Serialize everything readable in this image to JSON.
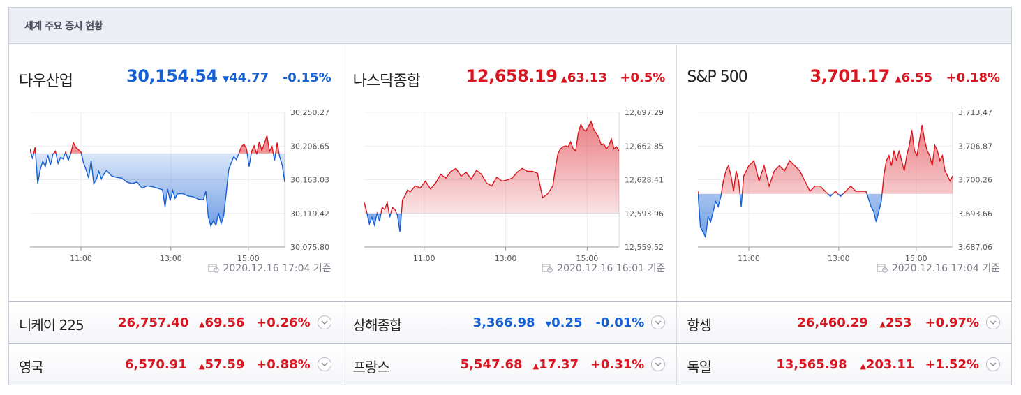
{
  "header": {
    "title": "세계 주요 증시 현황"
  },
  "colors": {
    "up": "#d9161f",
    "down": "#1560d4"
  },
  "chart_data": [
    {
      "type": "line",
      "name": "다우산업",
      "value": "30,154.54",
      "change": "44.77",
      "change_dir": "down",
      "percent": "-0.15%",
      "timestamp": "2020.12.16 17:04 기준",
      "ylim": [
        30075.8,
        30250.27
      ],
      "yticks": [
        "30,250.27",
        "30,206.65",
        "30,163.03",
        "30,119.42",
        "30,075.80"
      ],
      "xticks": [
        "11:00",
        "13:00",
        "15:00"
      ],
      "xtick_pos": [
        0.2,
        0.553,
        0.857
      ],
      "baseline": 30197.0,
      "x": [
        0.0,
        0.01,
        0.02,
        0.03,
        0.04,
        0.05,
        0.06,
        0.07,
        0.08,
        0.09,
        0.1,
        0.11,
        0.12,
        0.13,
        0.14,
        0.15,
        0.16,
        0.17,
        0.18,
        0.19,
        0.2,
        0.21,
        0.22,
        0.23,
        0.24,
        0.25,
        0.26,
        0.27,
        0.28,
        0.29,
        0.3,
        0.32,
        0.34,
        0.36,
        0.38,
        0.4,
        0.42,
        0.44,
        0.46,
        0.48,
        0.5,
        0.52,
        0.53,
        0.54,
        0.55,
        0.56,
        0.57,
        0.58,
        0.6,
        0.62,
        0.64,
        0.66,
        0.68,
        0.69,
        0.7,
        0.71,
        0.72,
        0.73,
        0.74,
        0.75,
        0.76,
        0.77,
        0.78,
        0.79,
        0.8,
        0.81,
        0.82,
        0.83,
        0.84,
        0.85,
        0.86,
        0.87,
        0.88,
        0.89,
        0.9,
        0.91,
        0.92,
        0.93,
        0.94,
        0.95,
        0.96,
        0.97,
        0.98,
        0.99,
        1.0
      ],
      "y": [
        30203,
        30190,
        30205,
        30158,
        30176,
        30187,
        30180,
        30195,
        30182,
        30196,
        30200,
        30184,
        30192,
        30190,
        30199,
        30188,
        30197,
        30211,
        30205,
        30202,
        30199,
        30185,
        30176,
        30165,
        30188,
        30158,
        30163,
        30174,
        30164,
        30170,
        30175,
        30168,
        30166,
        30165,
        30160,
        30158,
        30160,
        30152,
        30155,
        30154,
        30152,
        30150,
        30128,
        30151,
        30136,
        30149,
        30139,
        30145,
        30145,
        30142,
        30141,
        30138,
        30137,
        30148,
        30115,
        30103,
        30110,
        30104,
        30120,
        30106,
        30116,
        30145,
        30176,
        30185,
        30193,
        30189,
        30197,
        30206,
        30209,
        30203,
        30180,
        30200,
        30207,
        30196,
        30212,
        30201,
        30210,
        30220,
        30200,
        30206,
        30188,
        30211,
        30193,
        30182,
        30160
      ]
    },
    {
      "type": "line",
      "name": "나스닥종합",
      "value": "12,658.19",
      "change": "63.13",
      "change_dir": "up",
      "percent": "+0.5%",
      "timestamp": "2020.12.16 16:01 기준",
      "ylim": [
        12559.52,
        12697.29
      ],
      "yticks": [
        "12,697.29",
        "12,662.85",
        "12,628.41",
        "12,593.96",
        "12,559.52"
      ],
      "xticks": [
        "11:00",
        "13:00",
        "15:00"
      ],
      "xtick_pos": [
        0.235,
        0.555,
        0.875
      ],
      "baseline": 12594.0,
      "x": [
        0.0,
        0.01,
        0.02,
        0.03,
        0.04,
        0.05,
        0.06,
        0.07,
        0.08,
        0.09,
        0.1,
        0.11,
        0.12,
        0.13,
        0.14,
        0.15,
        0.16,
        0.17,
        0.18,
        0.2,
        0.22,
        0.24,
        0.26,
        0.28,
        0.3,
        0.32,
        0.34,
        0.36,
        0.38,
        0.4,
        0.42,
        0.44,
        0.46,
        0.48,
        0.5,
        0.52,
        0.54,
        0.56,
        0.58,
        0.6,
        0.62,
        0.64,
        0.66,
        0.68,
        0.7,
        0.72,
        0.74,
        0.75,
        0.76,
        0.77,
        0.78,
        0.79,
        0.8,
        0.81,
        0.82,
        0.83,
        0.84,
        0.85,
        0.86,
        0.87,
        0.88,
        0.89,
        0.9,
        0.91,
        0.92,
        0.93,
        0.94,
        0.95,
        0.96,
        0.97,
        0.98,
        0.99,
        1.0
      ],
      "y": [
        12605,
        12595,
        12583,
        12590,
        12582,
        12594,
        12586,
        12600,
        12598,
        12605,
        12590,
        12600,
        12598,
        12592,
        12575,
        12608,
        12612,
        12618,
        12616,
        12622,
        12620,
        12627,
        12619,
        12625,
        12634,
        12630,
        12637,
        12640,
        12632,
        12636,
        12629,
        12638,
        12634,
        12625,
        12622,
        12631,
        12627,
        12628,
        12630,
        12636,
        12640,
        12637,
        12637,
        12635,
        12610,
        12614,
        12622,
        12640,
        12655,
        12660,
        12662,
        12663,
        12662,
        12667,
        12660,
        12658,
        12676,
        12685,
        12680,
        12678,
        12683,
        12688,
        12680,
        12676,
        12672,
        12664,
        12665,
        12660,
        12663,
        12670,
        12660,
        12662,
        12658
      ]
    },
    {
      "type": "line",
      "name": "S&P 500",
      "value": "3,701.17",
      "change": "6.55",
      "change_dir": "up",
      "percent": "+0.18%",
      "timestamp": "2020.12.16 17:04 기준",
      "ylim": [
        3687.06,
        3713.47
      ],
      "yticks": [
        "3,713.47",
        "3,706.87",
        "3,700.26",
        "3,693.66",
        "3,687.06"
      ],
      "xticks": [
        "11:00",
        "13:00",
        "15:00"
      ],
      "xtick_pos": [
        0.2,
        0.553,
        0.857
      ],
      "baseline": 3697.5,
      "x": [
        0.0,
        0.01,
        0.02,
        0.03,
        0.04,
        0.05,
        0.06,
        0.07,
        0.08,
        0.09,
        0.1,
        0.11,
        0.12,
        0.13,
        0.14,
        0.15,
        0.16,
        0.17,
        0.18,
        0.2,
        0.22,
        0.24,
        0.26,
        0.28,
        0.3,
        0.32,
        0.34,
        0.36,
        0.38,
        0.4,
        0.42,
        0.44,
        0.46,
        0.48,
        0.5,
        0.52,
        0.54,
        0.56,
        0.58,
        0.6,
        0.62,
        0.64,
        0.66,
        0.68,
        0.69,
        0.7,
        0.71,
        0.72,
        0.73,
        0.74,
        0.75,
        0.76,
        0.77,
        0.78,
        0.79,
        0.8,
        0.81,
        0.82,
        0.83,
        0.84,
        0.85,
        0.86,
        0.87,
        0.88,
        0.89,
        0.9,
        0.91,
        0.92,
        0.93,
        0.94,
        0.95,
        0.96,
        0.97,
        0.98,
        0.99,
        1.0
      ],
      "y": [
        3698,
        3691,
        3690,
        3689,
        3693,
        3692,
        3694,
        3696,
        3695,
        3697,
        3700,
        3702,
        3703,
        3701,
        3698,
        3702,
        3700,
        3695,
        3701,
        3703,
        3704,
        3700,
        3703,
        3699,
        3702,
        3703,
        3702,
        3704,
        3703,
        3702,
        3700,
        3698,
        3699,
        3699,
        3698,
        3697,
        3698,
        3697,
        3698,
        3699,
        3698,
        3698,
        3698,
        3695,
        3694,
        3692,
        3694,
        3696,
        3701,
        3704,
        3705,
        3703,
        3706,
        3704,
        3706,
        3704,
        3702,
        3705,
        3707,
        3710,
        3706,
        3705,
        3708,
        3711,
        3708,
        3706,
        3705,
        3703,
        3707,
        3706,
        3704,
        3705,
        3702,
        3701,
        3700,
        3701
      ]
    }
  ],
  "rows": [
    [
      {
        "name": "니케이 225",
        "value": "26,757.40",
        "change": "69.56",
        "dir": "up",
        "percent": "+0.26%"
      },
      {
        "name": "상해종합",
        "value": "3,366.98",
        "change": "0.25",
        "dir": "down",
        "percent": "-0.01%"
      },
      {
        "name": "항셍",
        "value": "26,460.29",
        "change": "253",
        "dir": "up",
        "percent": "+0.97%"
      }
    ],
    [
      {
        "name": "영국",
        "value": "6,570.91",
        "change": "57.59",
        "dir": "up",
        "percent": "+0.88%"
      },
      {
        "name": "프랑스",
        "value": "5,547.68",
        "change": "17.37",
        "dir": "up",
        "percent": "+0.31%"
      },
      {
        "name": "독일",
        "value": "13,565.98",
        "change": "203.11",
        "dir": "up",
        "percent": "+1.52%"
      }
    ]
  ]
}
